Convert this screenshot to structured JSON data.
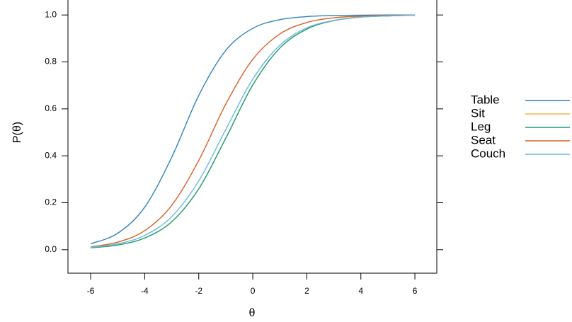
{
  "chart_data": {
    "type": "line",
    "x_label": "θ",
    "y_label": "P(θ)",
    "x": [
      -6,
      -5,
      -4,
      -3,
      -2,
      -1,
      0,
      1,
      2,
      3,
      4,
      5,
      6
    ],
    "series": [
      {
        "name": "Table",
        "color": "#3182bd",
        "values": [
          0.025,
          0.07,
          0.181,
          0.394,
          0.657,
          0.849,
          0.943,
          0.98,
          0.993,
          0.998,
          0.999,
          1.0,
          1.0
        ]
      },
      {
        "name": "Sit",
        "color": "#f2b44f",
        "values": [
          0.008,
          0.02,
          0.05,
          0.119,
          0.259,
          0.475,
          0.702,
          0.859,
          0.94,
          0.976,
          0.991,
          0.996,
          0.999
        ]
      },
      {
        "name": "Leg",
        "color": "#1a9e77",
        "values": [
          0.008,
          0.02,
          0.05,
          0.119,
          0.259,
          0.475,
          0.702,
          0.859,
          0.94,
          0.976,
          0.991,
          0.996,
          0.999
        ]
      },
      {
        "name": "Seat",
        "color": "#d95f27",
        "values": [
          0.012,
          0.032,
          0.081,
          0.189,
          0.38,
          0.62,
          0.811,
          0.919,
          0.968,
          0.988,
          0.995,
          0.998,
          0.999
        ]
      },
      {
        "name": "Couch",
        "color": "#6bb8e0",
        "values": [
          0.01,
          0.025,
          0.061,
          0.141,
          0.293,
          0.512,
          0.727,
          0.871,
          0.945,
          0.977,
          0.991,
          0.996,
          0.999
        ]
      }
    ],
    "xlim": [
      -6.84,
      6.81
    ],
    "xticks": [
      -6,
      -4,
      -2,
      0,
      2,
      4,
      6
    ],
    "ylim": [
      -0.1,
      1.1
    ],
    "yticks": [
      {
        "value": 0,
        "label": "0.0"
      },
      {
        "value": 0.2,
        "label": "0.2"
      },
      {
        "value": 0.4,
        "label": "0.4"
      },
      {
        "value": 0.6,
        "label": "0.6"
      },
      {
        "value": 0.8,
        "label": "0.8"
      },
      {
        "value": 1,
        "label": "1.0"
      }
    ],
    "legend": "right"
  }
}
